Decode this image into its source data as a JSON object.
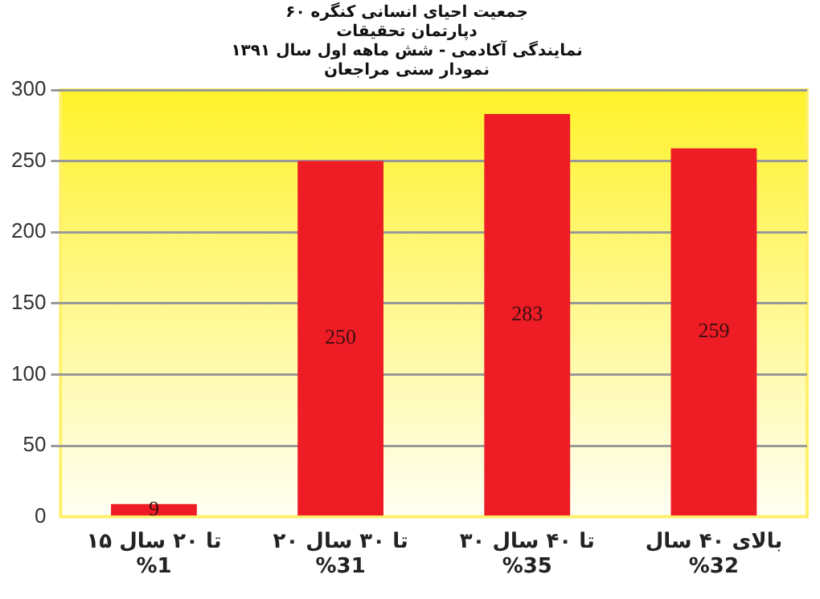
{
  "chart_data": {
    "type": "bar",
    "title": "جمعیت احیای انسانی کنگره ۶۰",
    "subtitle": "دپارتمان تحقیقات\nنمایندگی آکادمی - شش ماهه اول سال ۱۳۹۱\nنمودار سنی مراجعان",
    "categories": [
      "۱۵ تا ۲۰ سال\n%1",
      "۲۰ تا ۳۰ سال\n%31",
      "۳۰ تا ۴۰ سال\n%35",
      "بالای ۴۰ سال\n%32"
    ],
    "values": [
      9,
      250,
      283,
      259
    ],
    "color": "#ee1c25",
    "ylim": [
      0,
      300
    ],
    "yticks": [
      0,
      50,
      100,
      150,
      200,
      250,
      300
    ],
    "grid": "y",
    "data_labels": true,
    "legend": false
  }
}
